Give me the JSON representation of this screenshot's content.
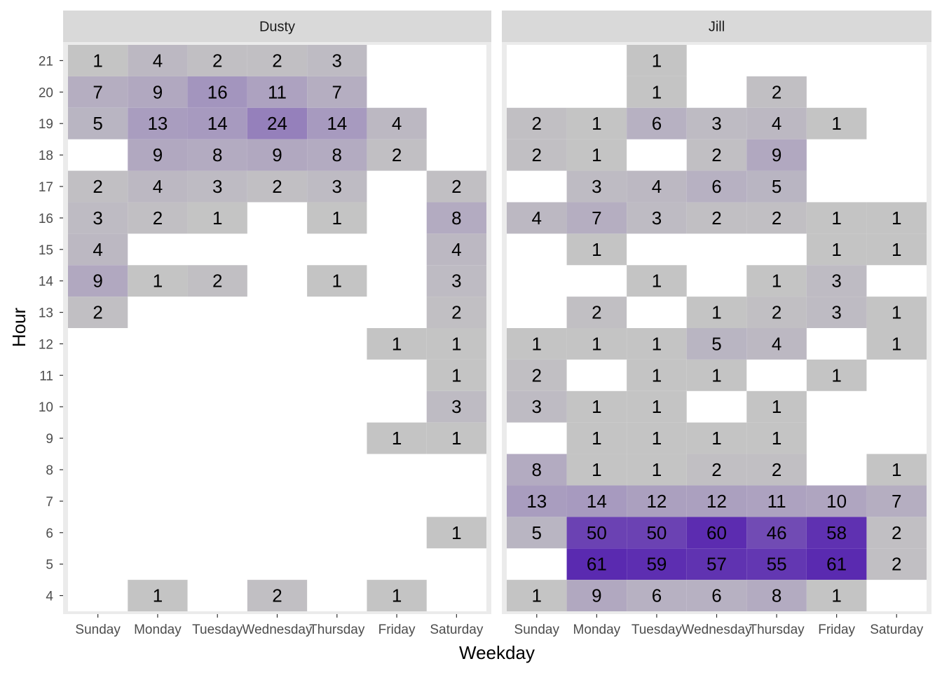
{
  "chart_data": {
    "type": "heatmap",
    "xlabel": "Weekday",
    "ylabel": "Hour",
    "x_categories": [
      "Sunday",
      "Monday",
      "Tuesday",
      "Wednesday",
      "Thursday",
      "Friday",
      "Saturday"
    ],
    "y_categories": [
      4,
      5,
      6,
      7,
      8,
      9,
      10,
      11,
      12,
      13,
      14,
      15,
      16,
      17,
      18,
      19,
      20,
      21
    ],
    "color_low": "#c4c4c4",
    "color_high": "#5a2ab0",
    "value_range": [
      1,
      61
    ],
    "panel_background": "#ebebeb",
    "grid_color": "#ffffff",
    "strip_background": "#d9d9d9",
    "facets": [
      {
        "name": "Dusty",
        "cells": [
          [
            "Sunday",
            21,
            1
          ],
          [
            "Monday",
            21,
            4
          ],
          [
            "Tuesday",
            21,
            2
          ],
          [
            "Wednesday",
            21,
            2
          ],
          [
            "Thursday",
            21,
            3
          ],
          [
            "Sunday",
            20,
            7
          ],
          [
            "Monday",
            20,
            9
          ],
          [
            "Tuesday",
            20,
            16
          ],
          [
            "Wednesday",
            20,
            11
          ],
          [
            "Thursday",
            20,
            7
          ],
          [
            "Sunday",
            19,
            5
          ],
          [
            "Monday",
            19,
            13
          ],
          [
            "Tuesday",
            19,
            14
          ],
          [
            "Wednesday",
            19,
            24
          ],
          [
            "Thursday",
            19,
            14
          ],
          [
            "Friday",
            19,
            4
          ],
          [
            "Monday",
            18,
            9
          ],
          [
            "Tuesday",
            18,
            8
          ],
          [
            "Wednesday",
            18,
            9
          ],
          [
            "Thursday",
            18,
            8
          ],
          [
            "Friday",
            18,
            2
          ],
          [
            "Sunday",
            17,
            2
          ],
          [
            "Monday",
            17,
            4
          ],
          [
            "Tuesday",
            17,
            3
          ],
          [
            "Wednesday",
            17,
            2
          ],
          [
            "Thursday",
            17,
            3
          ],
          [
            "Saturday",
            17,
            2
          ],
          [
            "Sunday",
            16,
            3
          ],
          [
            "Monday",
            16,
            2
          ],
          [
            "Tuesday",
            16,
            1
          ],
          [
            "Thursday",
            16,
            1
          ],
          [
            "Saturday",
            16,
            8
          ],
          [
            "Sunday",
            15,
            4
          ],
          [
            "Saturday",
            15,
            4
          ],
          [
            "Sunday",
            14,
            9
          ],
          [
            "Monday",
            14,
            1
          ],
          [
            "Tuesday",
            14,
            2
          ],
          [
            "Thursday",
            14,
            1
          ],
          [
            "Saturday",
            14,
            3
          ],
          [
            "Sunday",
            13,
            2
          ],
          [
            "Saturday",
            13,
            2
          ],
          [
            "Friday",
            12,
            1
          ],
          [
            "Saturday",
            12,
            1
          ],
          [
            "Saturday",
            11,
            1
          ],
          [
            "Saturday",
            10,
            3
          ],
          [
            "Friday",
            9,
            1
          ],
          [
            "Saturday",
            9,
            1
          ],
          [
            "Saturday",
            6,
            1
          ],
          [
            "Monday",
            4,
            1
          ],
          [
            "Wednesday",
            4,
            2
          ],
          [
            "Friday",
            4,
            1
          ]
        ]
      },
      {
        "name": "Jill",
        "cells": [
          [
            "Tuesday",
            21,
            1
          ],
          [
            "Tuesday",
            20,
            1
          ],
          [
            "Thursday",
            20,
            2
          ],
          [
            "Sunday",
            19,
            2
          ],
          [
            "Monday",
            19,
            1
          ],
          [
            "Tuesday",
            19,
            6
          ],
          [
            "Wednesday",
            19,
            3
          ],
          [
            "Thursday",
            19,
            4
          ],
          [
            "Friday",
            19,
            1
          ],
          [
            "Sunday",
            18,
            2
          ],
          [
            "Monday",
            18,
            1
          ],
          [
            "Wednesday",
            18,
            2
          ],
          [
            "Thursday",
            18,
            9
          ],
          [
            "Monday",
            17,
            3
          ],
          [
            "Tuesday",
            17,
            4
          ],
          [
            "Wednesday",
            17,
            6
          ],
          [
            "Thursday",
            17,
            5
          ],
          [
            "Sunday",
            16,
            4
          ],
          [
            "Monday",
            16,
            7
          ],
          [
            "Tuesday",
            16,
            3
          ],
          [
            "Wednesday",
            16,
            2
          ],
          [
            "Thursday",
            16,
            2
          ],
          [
            "Friday",
            16,
            1
          ],
          [
            "Saturday",
            16,
            1
          ],
          [
            "Monday",
            15,
            1
          ],
          [
            "Friday",
            15,
            1
          ],
          [
            "Saturday",
            15,
            1
          ],
          [
            "Tuesday",
            14,
            1
          ],
          [
            "Thursday",
            14,
            1
          ],
          [
            "Friday",
            14,
            3
          ],
          [
            "Monday",
            13,
            2
          ],
          [
            "Wednesday",
            13,
            1
          ],
          [
            "Thursday",
            13,
            2
          ],
          [
            "Friday",
            13,
            3
          ],
          [
            "Saturday",
            13,
            1
          ],
          [
            "Sunday",
            12,
            1
          ],
          [
            "Monday",
            12,
            1
          ],
          [
            "Tuesday",
            12,
            1
          ],
          [
            "Wednesday",
            12,
            5
          ],
          [
            "Thursday",
            12,
            4
          ],
          [
            "Saturday",
            12,
            1
          ],
          [
            "Sunday",
            11,
            2
          ],
          [
            "Tuesday",
            11,
            1
          ],
          [
            "Wednesday",
            11,
            1
          ],
          [
            "Friday",
            11,
            1
          ],
          [
            "Sunday",
            10,
            3
          ],
          [
            "Monday",
            10,
            1
          ],
          [
            "Tuesday",
            10,
            1
          ],
          [
            "Thursday",
            10,
            1
          ],
          [
            "Monday",
            9,
            1
          ],
          [
            "Tuesday",
            9,
            1
          ],
          [
            "Wednesday",
            9,
            1
          ],
          [
            "Thursday",
            9,
            1
          ],
          [
            "Sunday",
            8,
            8
          ],
          [
            "Monday",
            8,
            1
          ],
          [
            "Tuesday",
            8,
            1
          ],
          [
            "Wednesday",
            8,
            2
          ],
          [
            "Thursday",
            8,
            2
          ],
          [
            "Saturday",
            8,
            1
          ],
          [
            "Sunday",
            7,
            13
          ],
          [
            "Monday",
            7,
            14
          ],
          [
            "Tuesday",
            7,
            12
          ],
          [
            "Wednesday",
            7,
            12
          ],
          [
            "Thursday",
            7,
            11
          ],
          [
            "Friday",
            7,
            10
          ],
          [
            "Saturday",
            7,
            7
          ],
          [
            "Sunday",
            6,
            5
          ],
          [
            "Monday",
            6,
            50
          ],
          [
            "Tuesday",
            6,
            50
          ],
          [
            "Wednesday",
            6,
            60
          ],
          [
            "Thursday",
            6,
            46
          ],
          [
            "Friday",
            6,
            58
          ],
          [
            "Saturday",
            6,
            2
          ],
          [
            "Monday",
            5,
            61
          ],
          [
            "Tuesday",
            5,
            59
          ],
          [
            "Wednesday",
            5,
            57
          ],
          [
            "Thursday",
            5,
            55
          ],
          [
            "Friday",
            5,
            61
          ],
          [
            "Saturday",
            5,
            2
          ],
          [
            "Sunday",
            4,
            1
          ],
          [
            "Monday",
            4,
            9
          ],
          [
            "Tuesday",
            4,
            6
          ],
          [
            "Wednesday",
            4,
            6
          ],
          [
            "Thursday",
            4,
            8
          ],
          [
            "Friday",
            4,
            1
          ]
        ]
      }
    ]
  }
}
